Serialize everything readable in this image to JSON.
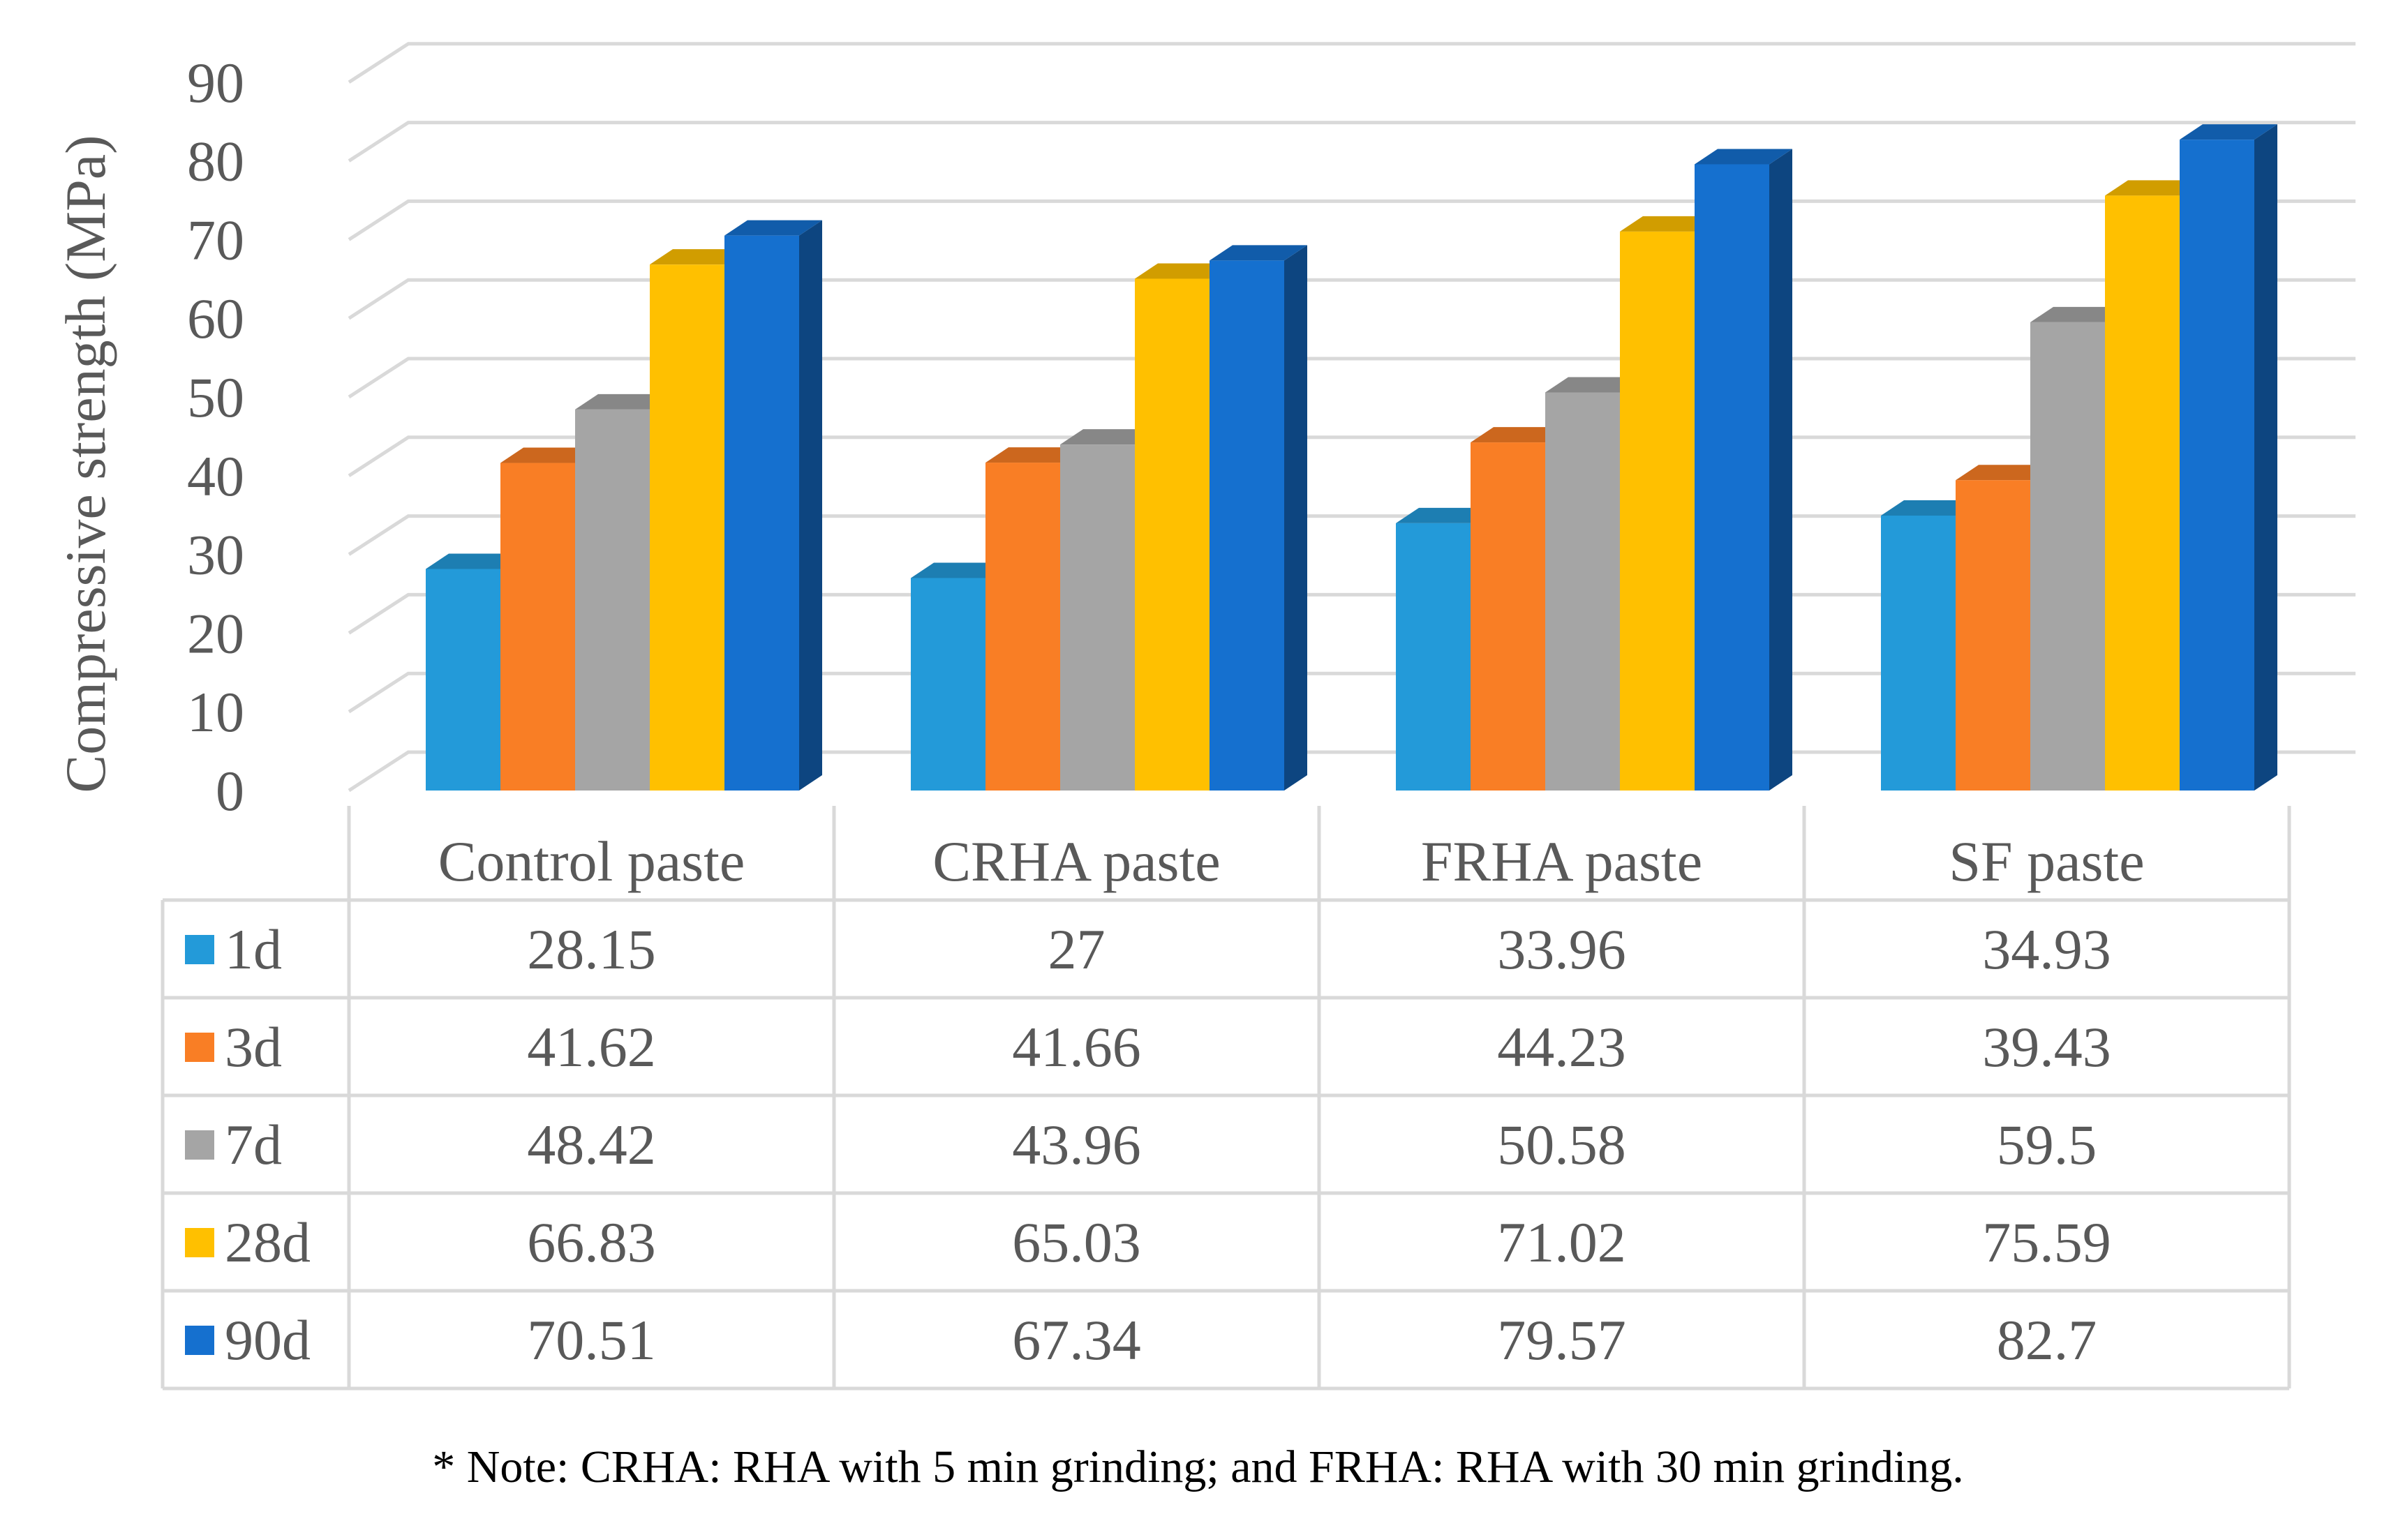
{
  "chart_data": {
    "type": "bar",
    "style": "3d-clustered-column-with-data-table",
    "title": "",
    "xlabel": "",
    "ylabel": "Compressive strength (MPa)",
    "ylim": [
      0,
      90
    ],
    "yticks": [
      0,
      10,
      20,
      30,
      40,
      50,
      60,
      70,
      80,
      90
    ],
    "grid": true,
    "legend": "left of data table",
    "categories": [
      "Control paste",
      "CRHA paste",
      "FRHA paste",
      "SF paste"
    ],
    "series": [
      {
        "name": "1d",
        "color": "#239AD9",
        "values": [
          28.15,
          27,
          33.96,
          34.93
        ],
        "labels": [
          "28.15",
          "27",
          "33.96",
          "34.93"
        ]
      },
      {
        "name": "3d",
        "color": "#F97E25",
        "values": [
          41.62,
          41.66,
          44.23,
          39.43
        ],
        "labels": [
          "41.62",
          "41.66",
          "44.23",
          "39.43"
        ]
      },
      {
        "name": "7d",
        "color": "#A5A5A5",
        "values": [
          48.42,
          43.96,
          50.58,
          59.5
        ],
        "labels": [
          "48.42",
          "43.96",
          "50.58",
          "59.5"
        ]
      },
      {
        "name": "28d",
        "color": "#FFC000",
        "values": [
          66.83,
          65.03,
          71.02,
          75.59
        ],
        "labels": [
          "66.83",
          "65.03",
          "71.02",
          "75.59"
        ]
      },
      {
        "name": "90d",
        "color": "#1570CF",
        "values": [
          70.51,
          67.34,
          79.57,
          82.7
        ],
        "labels": [
          "70.51",
          "67.34",
          "79.57",
          "82.7"
        ]
      }
    ]
  },
  "note": "* Note: CRHA: RHA with 5 min grinding; and FRHA: RHA with 30 min grinding."
}
